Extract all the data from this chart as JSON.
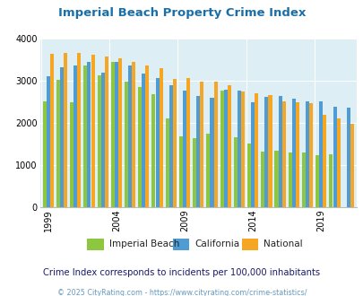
{
  "title": "Imperial Beach Property Crime Index",
  "years": [
    1999,
    2000,
    2001,
    2002,
    2003,
    2004,
    2005,
    2006,
    2007,
    2008,
    2009,
    2010,
    2011,
    2012,
    2013,
    2014,
    2015,
    2016,
    2017,
    2018,
    2019,
    2020,
    2021
  ],
  "imperial_beach": [
    2500,
    3010,
    2490,
    3350,
    3130,
    3440,
    2980,
    2850,
    2690,
    2110,
    1680,
    1640,
    1750,
    2760,
    1660,
    1510,
    1320,
    1350,
    1300,
    1290,
    1230,
    1250,
    null
  ],
  "california": [
    3110,
    3310,
    3360,
    3440,
    3200,
    3450,
    3370,
    3170,
    3060,
    2900,
    2770,
    2640,
    2600,
    2790,
    2760,
    2480,
    2610,
    2640,
    2580,
    2500,
    2510,
    2390,
    2370
  ],
  "national": [
    3640,
    3660,
    3660,
    3620,
    3580,
    3530,
    3440,
    3360,
    3290,
    3040,
    3060,
    2980,
    2970,
    2890,
    2740,
    2710,
    2650,
    2510,
    2480,
    2460,
    2200,
    2110,
    1970
  ],
  "colors": {
    "imperial_beach": "#8dc63f",
    "california": "#4f9cd4",
    "national": "#f5a623"
  },
  "ylim": [
    0,
    4000
  ],
  "yticks": [
    0,
    1000,
    2000,
    3000,
    4000
  ],
  "xtick_labels": [
    "1999",
    "2004",
    "2009",
    "2014",
    "2019"
  ],
  "xtick_positions": [
    1999,
    2004,
    2009,
    2014,
    2019
  ],
  "legend_labels": [
    "Imperial Beach",
    "California",
    "National"
  ],
  "subtitle": "Crime Index corresponds to incidents per 100,000 inhabitants",
  "footer": "© 2025 CityRating.com - https://www.cityrating.com/crime-statistics/",
  "bg_color": "#ddeef5",
  "fig_bg": "#ffffff",
  "title_color": "#1a6fa8",
  "subtitle_color": "#1a1a6e",
  "footer_color": "#6699bb"
}
